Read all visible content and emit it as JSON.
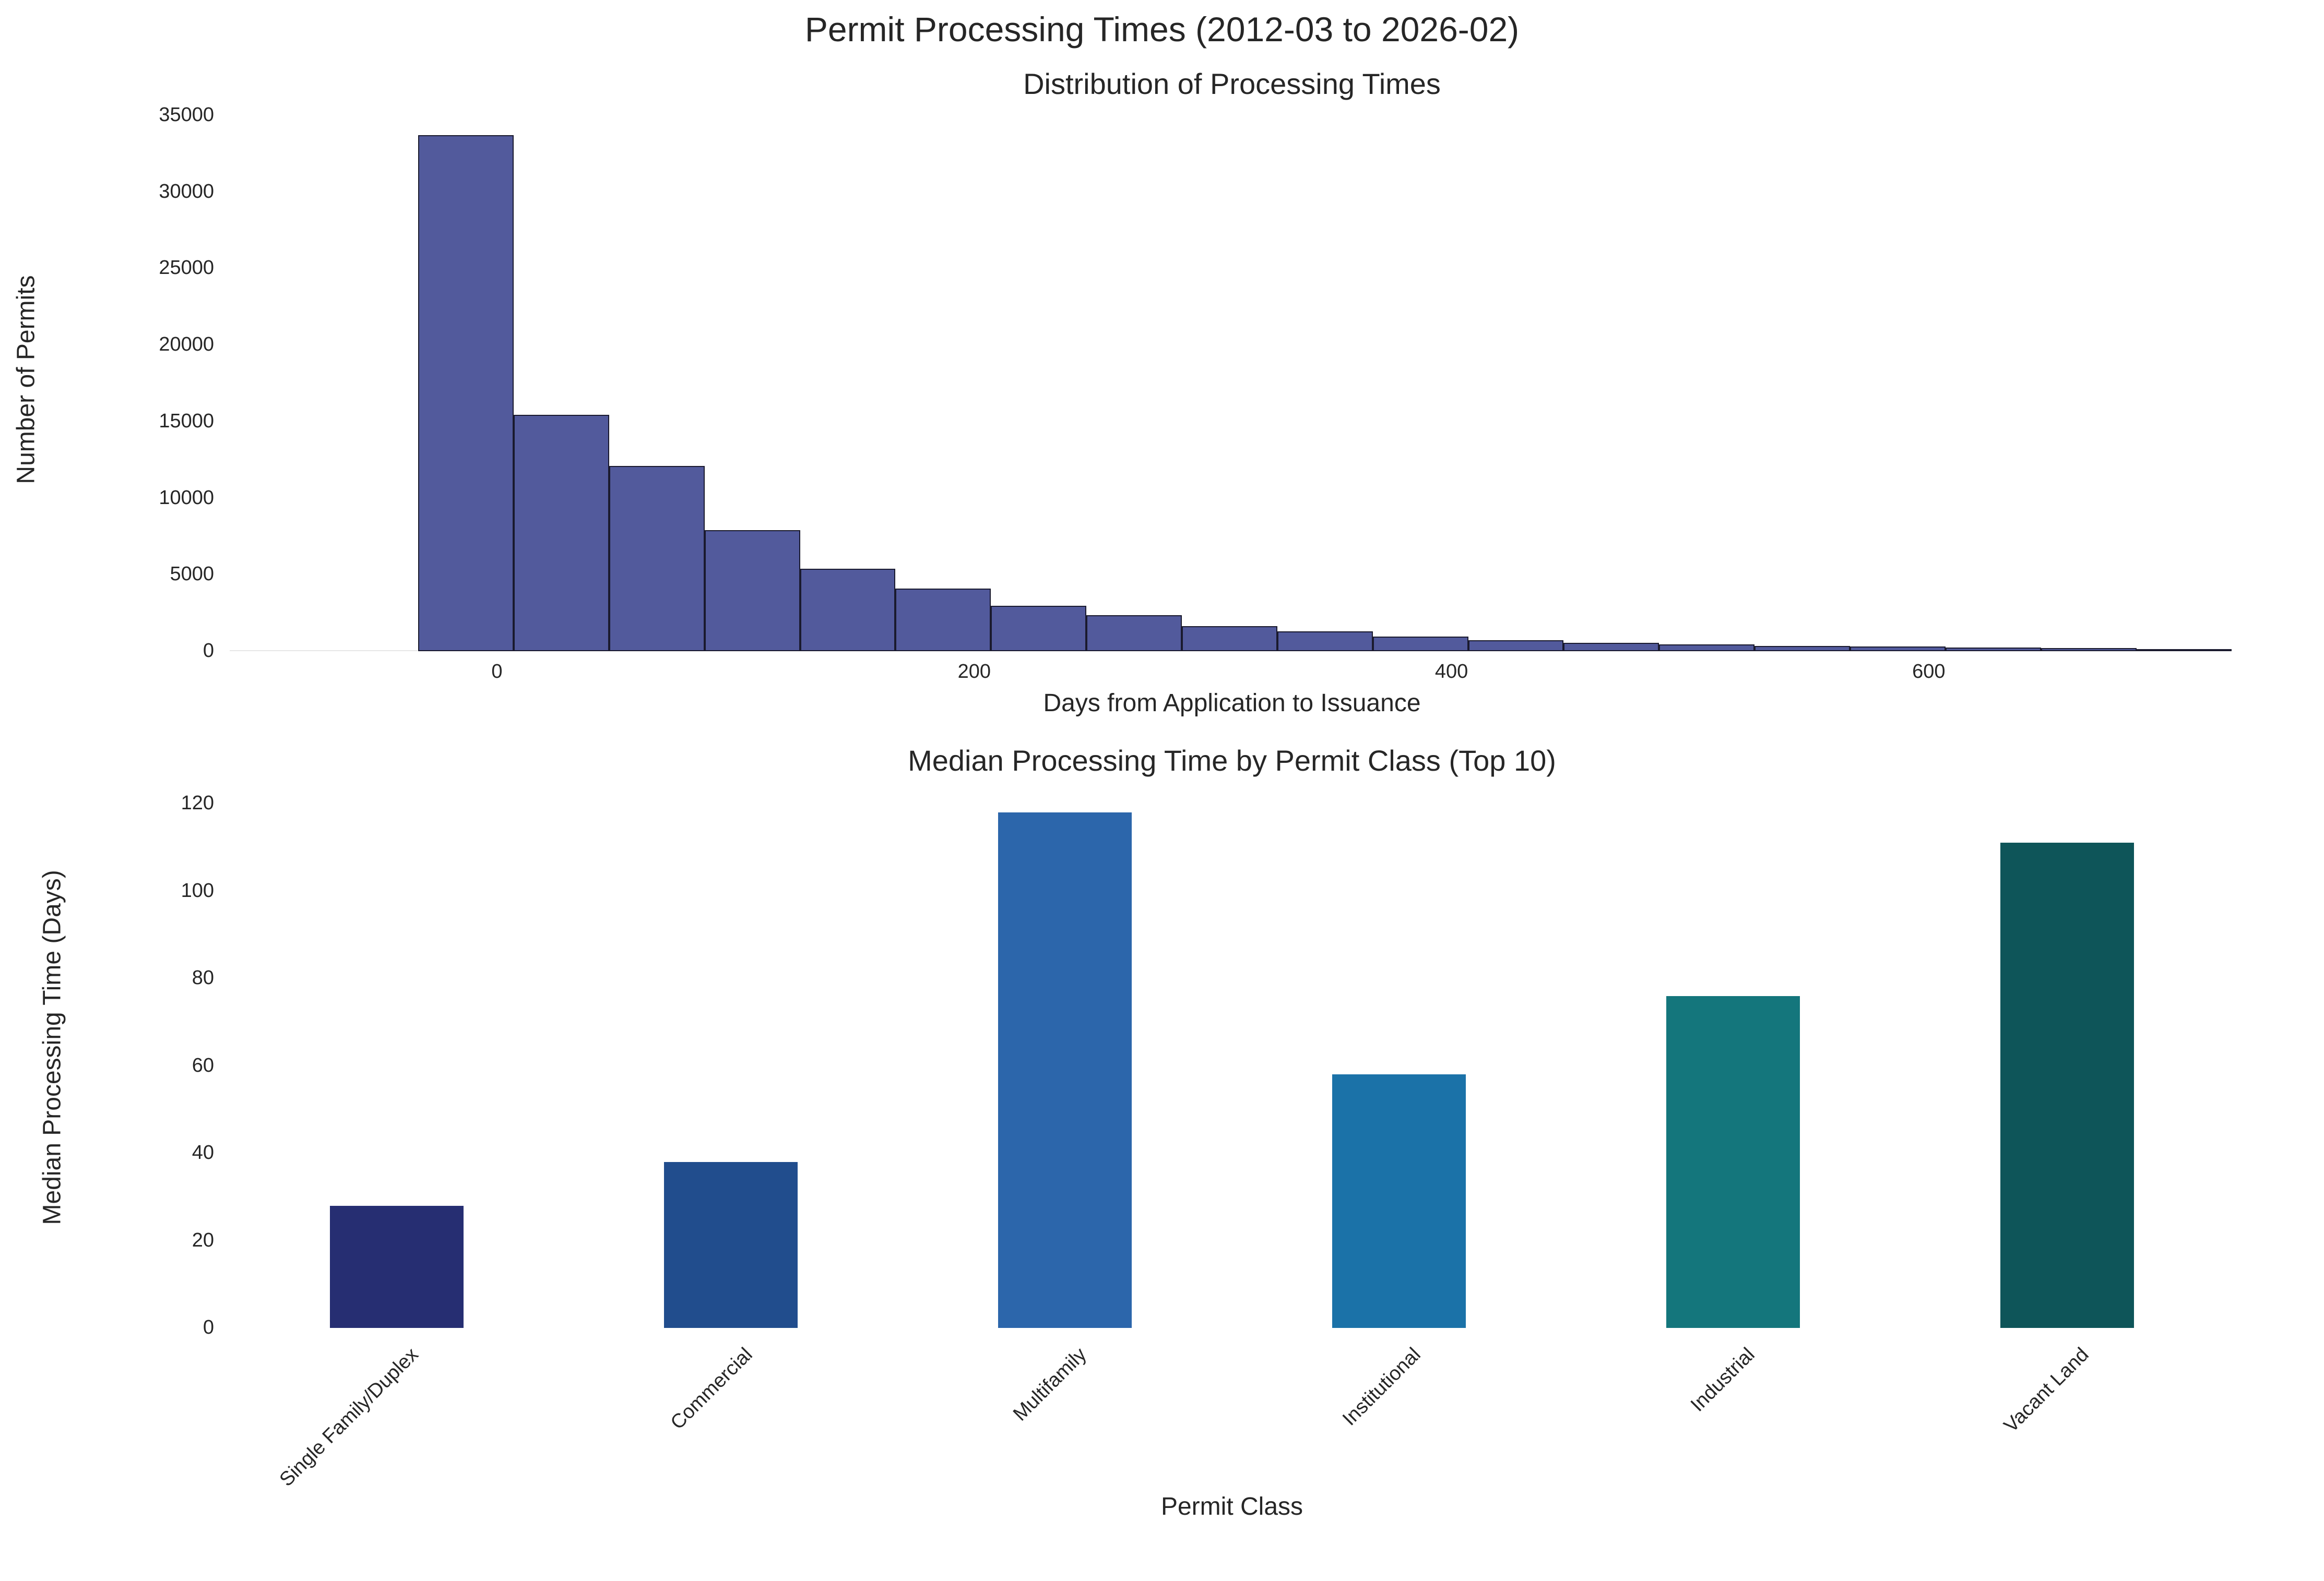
{
  "figure": {
    "suptitle": "Permit Processing Times (2012-03 to 2026-02)"
  },
  "chart_data": [
    {
      "type": "bar",
      "subtype": "histogram",
      "title": "Distribution of Processing Times",
      "xlabel": "Days from Application to Issuance",
      "ylabel": "Number of Permits",
      "xlim": [
        -112,
        728
      ],
      "ylim": [
        0,
        35000
      ],
      "xticks": [
        0,
        200,
        400,
        600
      ],
      "yticks": [
        0,
        5000,
        10000,
        15000,
        20000,
        25000,
        30000,
        35000
      ],
      "bin_width": 40,
      "bin_edges": [
        -33,
        7,
        47,
        87,
        127,
        167,
        207,
        247,
        287,
        327,
        367,
        407,
        447,
        487,
        527,
        567,
        607,
        647,
        687,
        727
      ],
      "values": [
        33700,
        15450,
        12100,
        7900,
        5400,
        4100,
        2950,
        2350,
        1650,
        1300,
        950,
        700,
        550,
        450,
        350,
        300,
        250,
        200,
        150
      ],
      "color": "#525a9c",
      "edgecolor": "#1a1a2e",
      "grid": false
    },
    {
      "type": "bar",
      "title": "Median Processing Time by Permit Class (Top 10)",
      "xlabel": "Permit Class",
      "ylabel": "Median Processing Time (Days)",
      "ylim": [
        0,
        120
      ],
      "yticks": [
        0,
        20,
        40,
        60,
        80,
        100,
        120
      ],
      "categories": [
        "Single Family/Duplex",
        "Commercial",
        "Multifamily",
        "Institutional",
        "Industrial",
        "Vacant Land"
      ],
      "values": [
        28,
        38,
        118,
        58,
        76,
        111
      ],
      "colors": [
        "#262e72",
        "#214d8d",
        "#2c66ab",
        "#1b72a8",
        "#14767c",
        "#0e5559"
      ],
      "xtick_rotation": 45,
      "grid": false
    }
  ]
}
